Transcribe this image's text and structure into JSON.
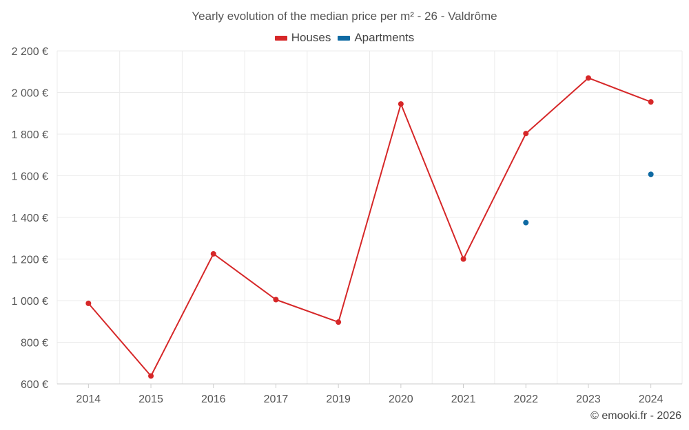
{
  "chart_data": {
    "type": "line",
    "title": "Yearly evolution of the median price per m² - 26 - Valdrôme",
    "categories": [
      "2014",
      "2015",
      "2016",
      "2017",
      "2019",
      "2020",
      "2021",
      "2022",
      "2023",
      "2024"
    ],
    "ylim": [
      600,
      2200
    ],
    "yticks": [
      600,
      800,
      1000,
      1200,
      1400,
      1600,
      1800,
      2000,
      2200
    ],
    "ytick_labels": [
      "600 €",
      "800 €",
      "1 000 €",
      "1 200 €",
      "1 400 €",
      "1 600 €",
      "1 800 €",
      "2 000 €",
      "2 200 €"
    ],
    "xlabel": "",
    "ylabel": "",
    "grid": true,
    "legend_position": "top-center",
    "series": [
      {
        "name": "Houses",
        "color": "#d62728",
        "line": true,
        "values": [
          987,
          638,
          1225,
          1005,
          897,
          1945,
          1200,
          1803,
          2070,
          1955
        ]
      },
      {
        "name": "Apartments",
        "color": "#0f6aa3",
        "line": false,
        "values": [
          null,
          null,
          null,
          null,
          null,
          null,
          null,
          1375,
          null,
          1607
        ]
      }
    ]
  },
  "footer": {
    "copyright": "© emooki.fr - 2026"
  }
}
